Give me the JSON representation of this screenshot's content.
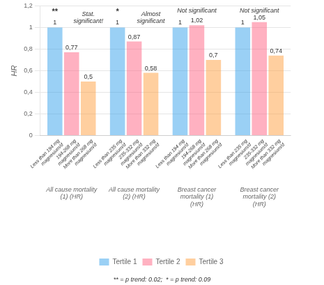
{
  "chart_data": {
    "type": "bar",
    "ylabel": "HR",
    "categories": [
      "All cause mortality\n(1) (HR)",
      "All cause mortality\n(2) (HR)",
      "Breast cancer\nmortality (1)\n(HR)",
      "Breast cancer\nmortality (2)\n(HR)"
    ],
    "series": [
      {
        "name": "Tertile 1",
        "values": [
          1.0,
          1.0,
          1.0,
          1.0
        ],
        "value_labels": [
          "1",
          "1",
          "1",
          "1"
        ],
        "bar_labels": [
          "Less than 194 mg\nmagnesium/d",
          "Less than 235 mg\nmagnesium/d",
          "Less than 194 mg\nmagnesium/d",
          "Less than 235 mg\nmagnesium/d"
        ]
      },
      {
        "name": "Tertile 2",
        "values": [
          0.77,
          0.87,
          1.02,
          1.05
        ],
        "value_labels": [
          "0,77",
          "0,87",
          "1,02",
          "1,05"
        ],
        "bar_labels": [
          "194-268 mg\nmagnesium/d",
          "235-332 mg\nmagnesium/d",
          "194-268 mg\nmagnesium/d",
          "235-332 mg\nmagnesium/d"
        ]
      },
      {
        "name": "Tertile 3",
        "values": [
          0.5,
          0.58,
          0.7,
          0.74
        ],
        "value_labels": [
          "0,5",
          "0,58",
          "0,7",
          "0,74"
        ],
        "bar_labels": [
          "More than 268 mg\nmagnesium/d",
          "More than 332 mg\nmagnesium/d",
          "More than 268 mg\nmagnesium/d",
          "More than 332 mg\nmagnesium/d"
        ]
      }
    ],
    "ylim": [
      0,
      1.2
    ],
    "yticks": [
      0,
      {
        "value": 0.2,
        "label": "0,2"
      },
      {
        "value": 0.4,
        "label": "0,4"
      },
      {
        "value": 0.6,
        "label": "0,6"
      },
      {
        "value": 0.8,
        "label": "0,8"
      },
      1,
      {
        "value": 1.2,
        "label": "1,2"
      }
    ],
    "grid": true,
    "legend": "bottom",
    "data_labels": true,
    "annotations": [
      {
        "text": "**",
        "category": "All cause mortality\n(1) (HR)"
      },
      {
        "text": "Stat.\nsignificant!",
        "category": "All cause mortality\n(1) (HR)"
      },
      {
        "text": "*",
        "category": "All cause mortality\n(2) (HR)"
      },
      {
        "text": "Almost\nsignificant",
        "category": "All cause mortality\n(2) (HR)"
      },
      {
        "text": "Not significant",
        "category": "Breast cancer\nmortality (1)\n(HR)"
      },
      {
        "text": "Not significant",
        "category": "Breast cancer\nmortality (2)\n(HR)"
      },
      {
        "text": "** = p trend: 0.02;  * = p trend: 0.09"
      }
    ]
  }
}
